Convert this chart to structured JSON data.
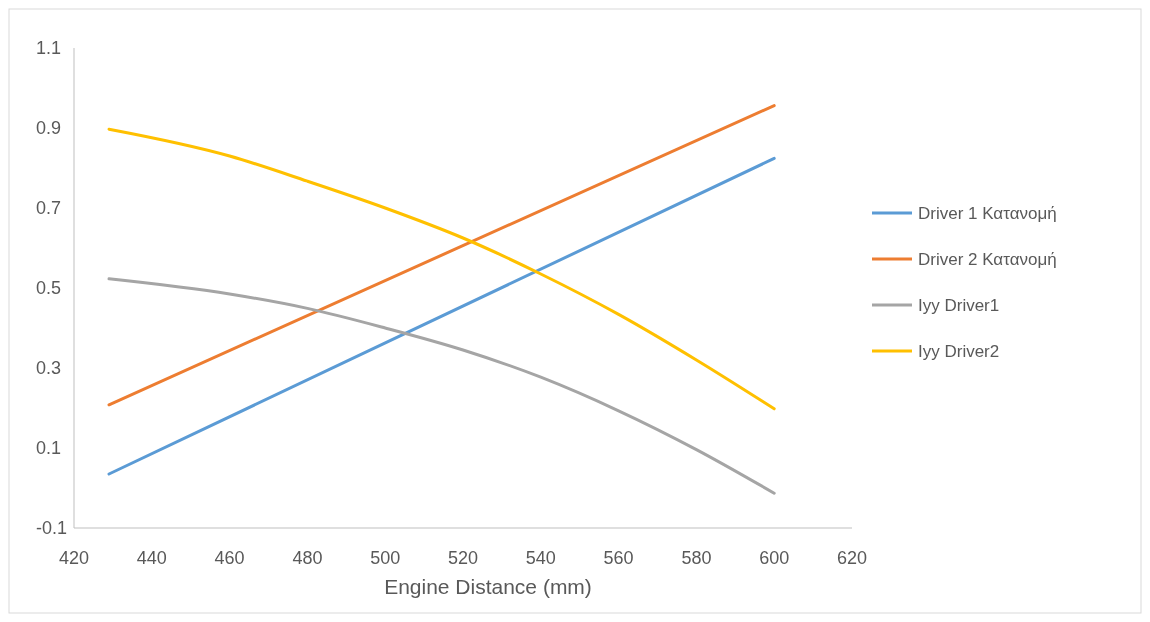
{
  "chart_data": {
    "type": "line",
    "xlabel": "Engine Distance (mm)",
    "xlim": [
      420,
      620
    ],
    "xticks": [
      420,
      440,
      460,
      480,
      500,
      520,
      540,
      560,
      580,
      600,
      620
    ],
    "ylim": [
      -0.1,
      1.1
    ],
    "yticks": [
      -0.1,
      0.1,
      0.3,
      0.5,
      0.7,
      0.9,
      1.1
    ],
    "grid": false,
    "legend": "right",
    "marker": "none",
    "line_style": "solid",
    "series": [
      {
        "name": "Driver 1 Κατανομή",
        "color": "#5b9bd5",
        "x": [
          429,
          600
        ],
        "values": [
          0.035,
          0.824
        ]
      },
      {
        "name": "Driver 2 Κατανομή",
        "color": "#ed7d31",
        "x": [
          429,
          600
        ],
        "values": [
          0.208,
          0.956
        ]
      },
      {
        "name": "Iyy Driver1",
        "color": "#a5a5a5",
        "x": [
          429,
          460,
          480,
          500,
          520,
          540,
          560,
          580,
          600
        ],
        "values": [
          0.523,
          0.485,
          0.449,
          0.4,
          0.345,
          0.277,
          0.193,
          0.096,
          -0.013
        ]
      },
      {
        "name": "Iyy Driver2",
        "color": "#ffc000",
        "x": [
          429,
          460,
          480,
          500,
          520,
          540,
          560,
          580,
          600
        ],
        "values": [
          0.897,
          0.83,
          0.767,
          0.7,
          0.625,
          0.535,
          0.434,
          0.32,
          0.198
        ]
      }
    ]
  }
}
